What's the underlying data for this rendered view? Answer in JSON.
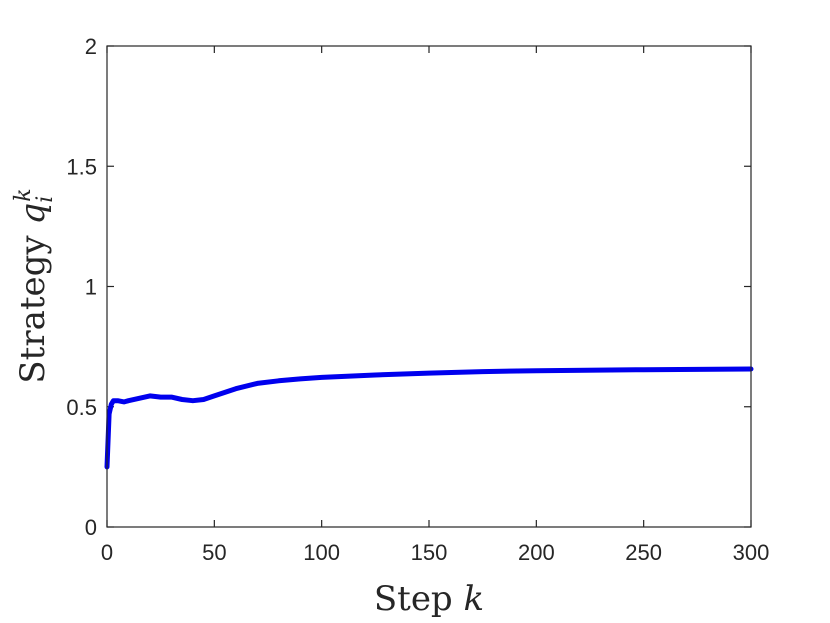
{
  "chart_data": {
    "type": "line",
    "title": "",
    "xlabel": {
      "prefix": "Step",
      "var": "k"
    },
    "ylabel": {
      "prefix": "Strategy",
      "var": "q",
      "sub": "i",
      "sup": "k"
    },
    "xlim": [
      0,
      300
    ],
    "ylim": [
      0,
      2
    ],
    "xticks": [
      0,
      50,
      100,
      150,
      200,
      250,
      300
    ],
    "xtick_labels": [
      "0",
      "50",
      "100",
      "150",
      "200",
      "250",
      "300"
    ],
    "yticks": [
      0,
      0.5,
      1,
      1.5,
      2
    ],
    "ytick_labels": [
      "0",
      "0.5",
      "1",
      "1.5",
      "2"
    ],
    "grid": false,
    "series": [
      {
        "color": "#0000ee",
        "x": [
          0,
          1,
          2,
          3,
          5,
          8,
          10,
          15,
          20,
          25,
          30,
          35,
          40,
          45,
          50,
          60,
          70,
          80,
          90,
          100,
          125,
          150,
          175,
          200,
          250,
          300
        ],
        "y": [
          0.25,
          0.47,
          0.51,
          0.525,
          0.525,
          0.52,
          0.525,
          0.535,
          0.545,
          0.54,
          0.54,
          0.53,
          0.525,
          0.53,
          0.545,
          0.575,
          0.597,
          0.608,
          0.616,
          0.622,
          0.632,
          0.64,
          0.646,
          0.65,
          0.654,
          0.657
        ]
      }
    ]
  }
}
